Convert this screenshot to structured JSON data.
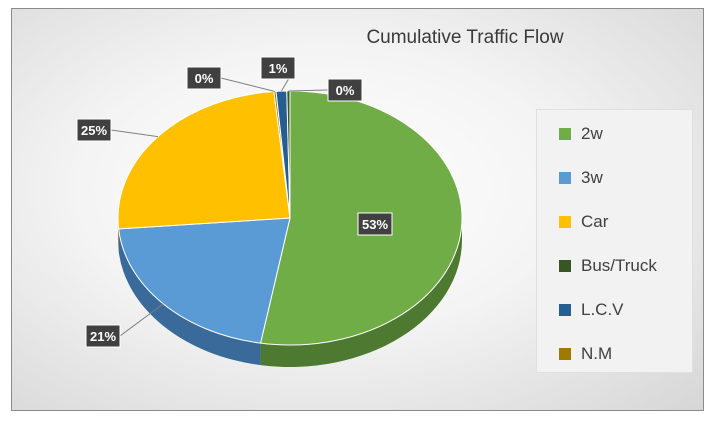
{
  "chart_data": {
    "type": "pie",
    "title": "Cumulative Traffic Flow",
    "legend_position": "right",
    "slices": [
      {
        "name": "2w",
        "value": 53,
        "label": "53%",
        "color": "#70ad47",
        "side": "#4d7a30"
      },
      {
        "name": "3w",
        "value": 21,
        "label": "21%",
        "color": "#5b9bd5",
        "side": "#3a6a99"
      },
      {
        "name": "Car",
        "value": 25,
        "label": "25%",
        "color": "#ffc000",
        "side": "#b38600"
      },
      {
        "name": "Bus/Truck",
        "value": 0.3,
        "label": "0%",
        "color": "#375623",
        "side": "#233816"
      },
      {
        "name": "L.C.V",
        "value": 1,
        "label": "1%",
        "color": "#255e91",
        "side": "#173c5e"
      },
      {
        "name": "N.M",
        "value": 0.2,
        "label": "0%",
        "color": "#9e7b00",
        "side": "#6b5300"
      }
    ],
    "plot_order": [
      "2w",
      "3w",
      "Car",
      "N.M",
      "L.C.V",
      "Bus/Truck"
    ]
  }
}
